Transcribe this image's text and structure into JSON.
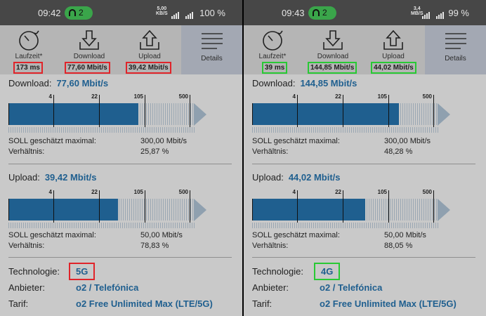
{
  "colors": {
    "accent": "#1f5f8f",
    "highlight_old": "#e0242a",
    "highlight_new": "#28c934"
  },
  "scale_labels": [
    "4",
    "22",
    "105",
    "500"
  ],
  "phones": [
    {
      "id": "left",
      "status": {
        "time": "09:42",
        "wifi_count": "2",
        "speed_top": "5,00",
        "speed_bottom": "KB/S",
        "battery": "100 %"
      },
      "tabs": {
        "latency_label": "Laufzeit*",
        "latency_value": "173 ms",
        "download_label": "Download",
        "download_value": "77,60 Mbit/s",
        "upload_label": "Upload",
        "upload_value": "39,42 Mbit/s",
        "details_label": "Details"
      },
      "download": {
        "title": "Download:",
        "value": "77,60 Mbit/s",
        "fill_fraction": 0.7,
        "soll_label": "SOLL geschätzt maximal:",
        "soll_value": "300,00 Mbit/s",
        "ratio_label": "Verhältnis:",
        "ratio_value": "25,87 %"
      },
      "upload": {
        "title": "Upload:",
        "value": "39,42 Mbit/s",
        "fill_fraction": 0.59,
        "soll_label": "SOLL geschätzt maximal:",
        "soll_value": "50,00 Mbit/s",
        "ratio_label": "Verhältnis:",
        "ratio_value": "78,83 %"
      },
      "info": {
        "tech_label": "Technologie:",
        "tech_value": "5G",
        "provider_label": "Anbieter:",
        "provider_value": "o2 / Telefónica",
        "tariff_label": "Tarif:",
        "tariff_value": "o2 Free Unlimited Max (LTE/5G)"
      }
    },
    {
      "id": "right",
      "status": {
        "time": "09:43",
        "wifi_count": "2",
        "speed_top": "3,4",
        "speed_bottom": "MB/S",
        "battery": "99 %"
      },
      "tabs": {
        "latency_label": "Laufzeit*",
        "latency_value": "39 ms",
        "download_label": "Download",
        "download_value": "144,85 Mbit/s",
        "upload_label": "Upload",
        "upload_value": "44,02 Mbit/s",
        "details_label": "Details"
      },
      "download": {
        "title": "Download:",
        "value": "144,85 Mbit/s",
        "fill_fraction": 0.79,
        "soll_label": "SOLL geschätzt maximal:",
        "soll_value": "300,00 Mbit/s",
        "ratio_label": "Verhältnis:",
        "ratio_value": "48,28 %"
      },
      "upload": {
        "title": "Upload:",
        "value": "44,02 Mbit/s",
        "fill_fraction": 0.61,
        "soll_label": "SOLL geschätzt maximal:",
        "soll_value": "50,00 Mbit/s",
        "ratio_label": "Verhältnis:",
        "ratio_value": "88,05 %"
      },
      "info": {
        "tech_label": "Technologie:",
        "tech_value": "4G",
        "provider_label": "Anbieter:",
        "provider_value": "o2 / Telefónica",
        "tariff_label": "Tarif:",
        "tariff_value": "o2 Free Unlimited Max (LTE/5G)"
      }
    }
  ]
}
